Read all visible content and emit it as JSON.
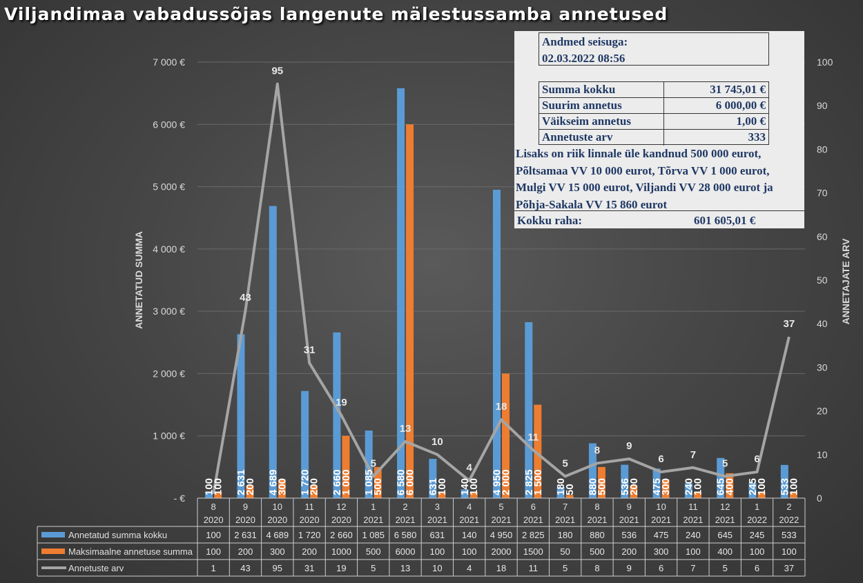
{
  "title": "Viljandimaa vabadussõjas langenute mälestussamba annetused",
  "info": {
    "date_label": "Andmed seisuga:",
    "date_value": "02.03.2022 08:56",
    "rows": [
      {
        "label": "Summa kokku",
        "value": "31 745,01 €"
      },
      {
        "label": "Suurim annetus",
        "value": "6 000,00 €"
      },
      {
        "label": "Väikseim annetus",
        "value": "1,00 €"
      },
      {
        "label": "Annetuste arv",
        "value": "333"
      }
    ],
    "note_lines": [
      "Lisaks on riik linnale üle kandnud 500 000 eurot,",
      "Põltsamaa VV 10 000 eurot, Tõrva VV 1 000 eurot,",
      "Mulgi VV 15 000 eurot, Viljandi VV 28 000 eurot ja",
      "Põhja-Sakala VV 15 860 eurot"
    ],
    "total_label": "Kokku raha:",
    "total_value": "601 605,01 €"
  },
  "colors": {
    "blue": "#5b9bd5",
    "orange": "#ed7d31",
    "gray": "#a5a5a5"
  },
  "chart_data": {
    "type": "bar",
    "categories": [
      [
        "8",
        "2020"
      ],
      [
        "9",
        "2020"
      ],
      [
        "10",
        "2020"
      ],
      [
        "11",
        "2020"
      ],
      [
        "12",
        "2020"
      ],
      [
        "1",
        "2021"
      ],
      [
        "2",
        "2021"
      ],
      [
        "3",
        "2021"
      ],
      [
        "4",
        "2021"
      ],
      [
        "5",
        "2021"
      ],
      [
        "6",
        "2021"
      ],
      [
        "7",
        "2021"
      ],
      [
        "8",
        "2021"
      ],
      [
        "9",
        "2021"
      ],
      [
        "10",
        "2021"
      ],
      [
        "11",
        "2021"
      ],
      [
        "12",
        "2021"
      ],
      [
        "1",
        "2022"
      ],
      [
        "2",
        "2022"
      ]
    ],
    "series": [
      {
        "name": "Annetatud summa kokku",
        "type": "bar",
        "axis": "left",
        "values": [
          100,
          2631,
          4689,
          1720,
          2660,
          1085,
          6580,
          631,
          140,
          4950,
          2825,
          180,
          880,
          536,
          475,
          240,
          645,
          245,
          533
        ],
        "labels": [
          "100",
          "2 631",
          "4 689",
          "1 720",
          "2 660",
          "1 085",
          "6 580",
          "631",
          "140",
          "4 950",
          "2 825",
          "180",
          "880",
          "536",
          "475",
          "240",
          "645",
          "245",
          "533"
        ],
        "table": [
          "100",
          "2 631",
          "4 689",
          "1 720",
          "2 660",
          "1 085",
          "6 580",
          "631",
          "140",
          "4 950",
          "2 825",
          "180",
          "880",
          "536",
          "475",
          "240",
          "645",
          "245",
          "533"
        ]
      },
      {
        "name": "Maksimaalne annetuse summa",
        "type": "bar",
        "axis": "left",
        "values": [
          100,
          200,
          300,
          200,
          1000,
          500,
          6000,
          100,
          100,
          2000,
          1500,
          50,
          500,
          200,
          300,
          100,
          400,
          100,
          100
        ],
        "labels": [
          "100",
          "200",
          "300",
          "200",
          "1 000",
          "500",
          "6 000",
          "100",
          "100",
          "2 000",
          "1 500",
          "50",
          "500",
          "200",
          "300",
          "100",
          "400",
          "100",
          "100"
        ],
        "table": [
          "100",
          "200",
          "300",
          "200",
          "1000",
          "500",
          "6000",
          "100",
          "100",
          "2000",
          "1500",
          "50",
          "500",
          "200",
          "300",
          "100",
          "400",
          "100",
          "100"
        ]
      },
      {
        "name": "Annetuste arv",
        "type": "line",
        "axis": "right",
        "values": [
          1,
          43,
          95,
          31,
          19,
          5,
          13,
          10,
          4,
          18,
          11,
          5,
          8,
          9,
          6,
          7,
          5,
          6,
          37
        ],
        "labels": [
          "1",
          "43",
          "95",
          "31",
          "19",
          "5",
          "13",
          "10",
          "4",
          "18",
          "11",
          "5",
          "8",
          "9",
          "6",
          "7",
          "5",
          "6",
          "37"
        ],
        "table": [
          "1",
          "43",
          "95",
          "31",
          "19",
          "5",
          "13",
          "10",
          "4",
          "18",
          "11",
          "5",
          "8",
          "9",
          "6",
          "7",
          "5",
          "6",
          "37"
        ]
      }
    ],
    "ylabel": "ANNETATUD SUMMA",
    "y2label": "ANNETAJATE ARV",
    "ylim": [
      0,
      7000
    ],
    "y2lim": [
      0,
      100
    ],
    "yticks": [
      "-  €",
      "1 000 €",
      "2 000 €",
      "3 000 €",
      "4 000 €",
      "5 000 €",
      "6 000 €",
      "7 000 €"
    ],
    "y2ticks": [
      "0",
      "10",
      "20",
      "30",
      "40",
      "50",
      "60",
      "70",
      "80",
      "90",
      "100"
    ],
    "legend": "data table"
  }
}
